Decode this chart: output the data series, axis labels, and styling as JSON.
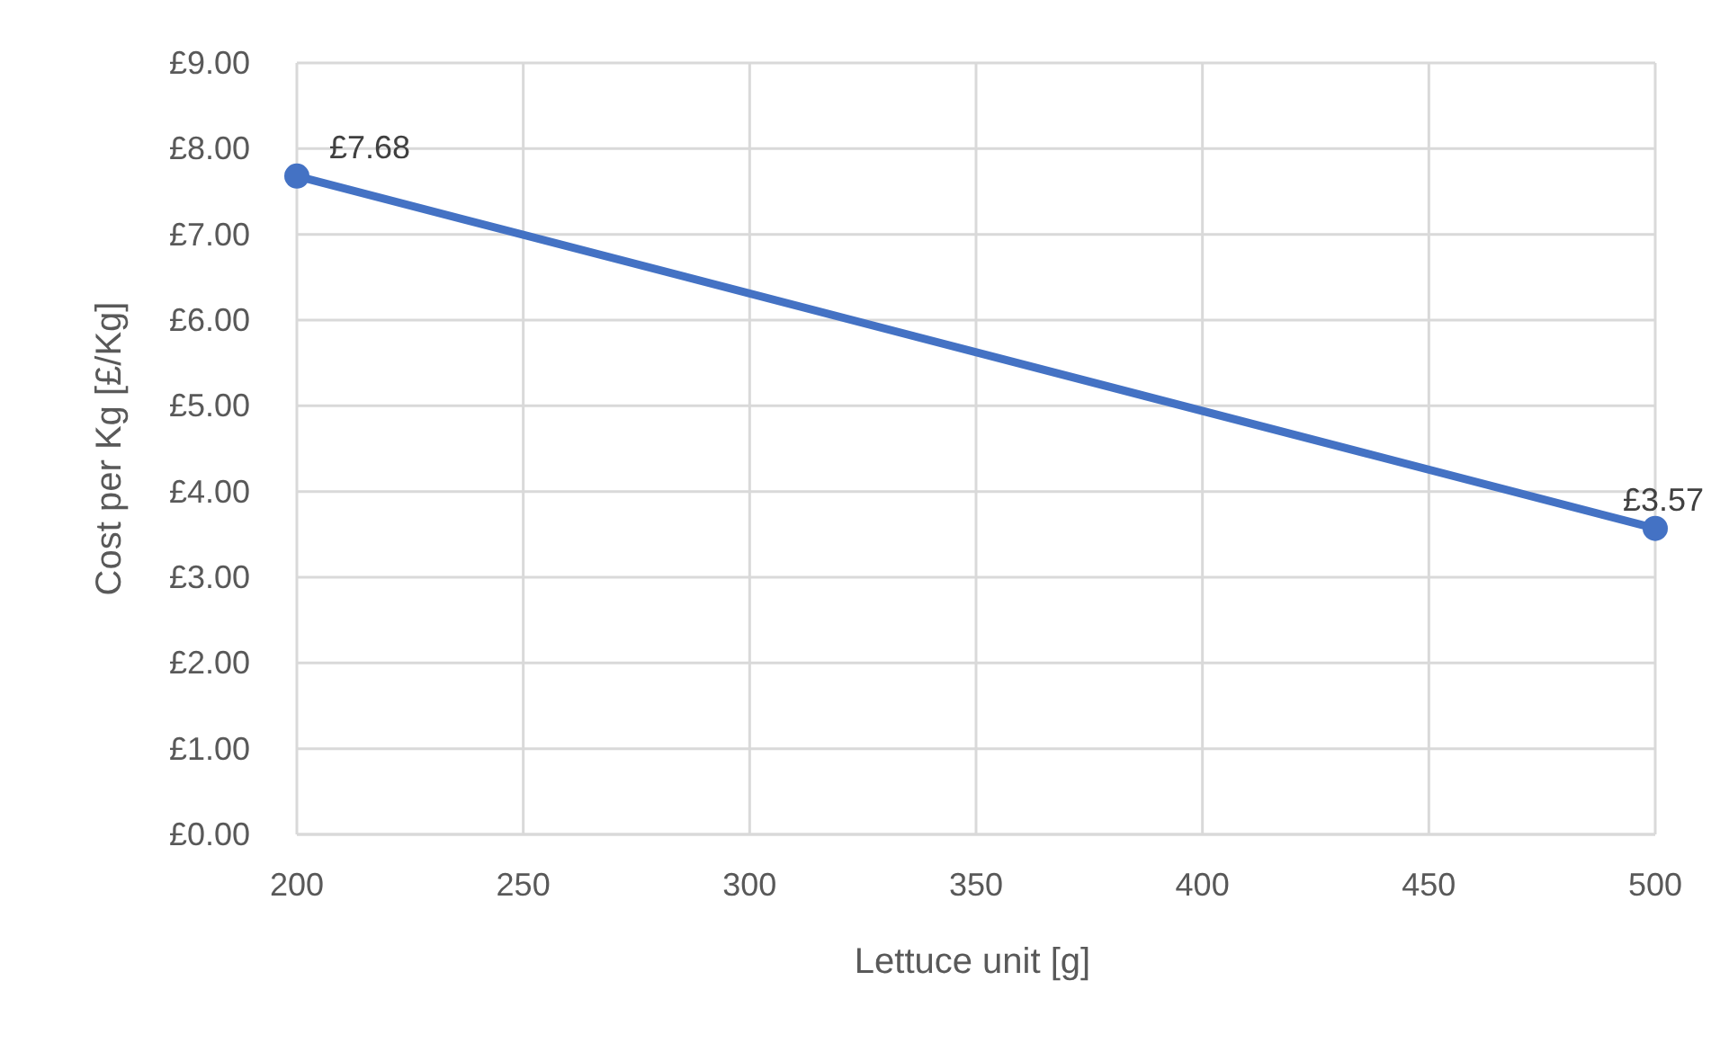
{
  "chart_data": {
    "type": "line",
    "xlabel": "Lettuce unit [g]",
    "ylabel": "Cost per Kg [£/Kg]",
    "x": [
      200,
      500
    ],
    "series": [
      {
        "color": "#4472c4",
        "values": [
          7.68,
          3.57
        ],
        "value_labels": [
          "£7.68",
          "£3.57"
        ]
      }
    ],
    "xlim": [
      200,
      500
    ],
    "xticks": [
      200,
      250,
      300,
      350,
      400,
      450,
      500
    ],
    "ylim": [
      0,
      9
    ],
    "yticks": [
      {
        "value": 0,
        "label": "£0.00"
      },
      {
        "value": 1,
        "label": "£1.00"
      },
      {
        "value": 2,
        "label": "£2.00"
      },
      {
        "value": 3,
        "label": "£3.00"
      },
      {
        "value": 4,
        "label": "£4.00"
      },
      {
        "value": 5,
        "label": "£5.00"
      },
      {
        "value": 6,
        "label": "£6.00"
      },
      {
        "value": 7,
        "label": "£7.00"
      },
      {
        "value": 8,
        "label": "£8.00"
      },
      {
        "value": 9,
        "label": "£9.00"
      }
    ],
    "grid": true,
    "marker": "circle",
    "line_style": "solid"
  }
}
